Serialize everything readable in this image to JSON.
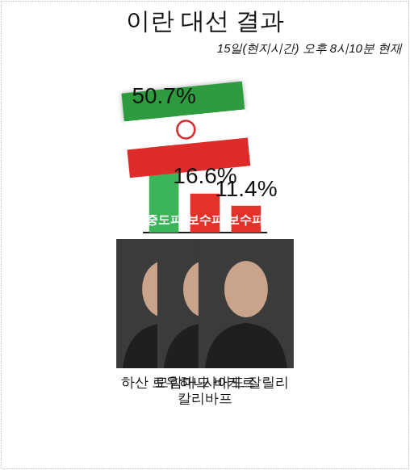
{
  "chart_data": {
    "type": "bar",
    "title": "이란 대선 결과",
    "subtitle": "15일(현지시간) 오후 8시10분 현재",
    "categories": [
      "하산 로우하니",
      "모함마드 바케르 칼리바프",
      "사이드 잘릴리"
    ],
    "values": [
      50.7,
      16.6,
      11.4
    ],
    "value_labels": [
      "50.7%",
      "16.6%",
      "11.4%"
    ],
    "bar_labels": [
      "중도파",
      "보수파",
      "보수파"
    ],
    "colors": [
      "#3cb45a",
      "#e4322b",
      "#e4322b"
    ],
    "ylim": [
      0,
      55
    ],
    "grid": false,
    "data_labels": true,
    "tick_labels": "x"
  }
}
